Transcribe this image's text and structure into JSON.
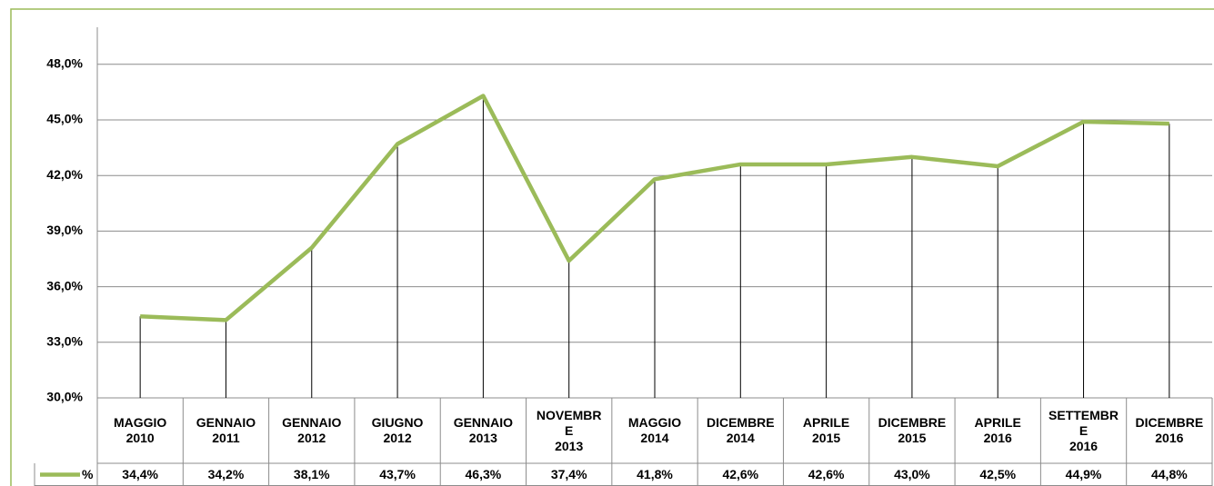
{
  "chart_data": {
    "type": "line",
    "categories": [
      "MAGGIO\n2010",
      "GENNAIO\n2011",
      "GENNAIO\n2012",
      "GIUGNO\n2012",
      "GENNAIO\n2013",
      "NOVEMBR\nE\n2013",
      "MAGGIO\n2014",
      "DICEMBRE\n2014",
      "APRILE\n2015",
      "DICEMBRE\n2015",
      "APRILE\n2016",
      "SETTEMBR\nE\n2016",
      "DICEMBRE\n2016"
    ],
    "series": [
      {
        "name": "%",
        "color": "#9bbb59",
        "values": [
          34.4,
          34.2,
          38.1,
          43.7,
          46.3,
          37.4,
          41.8,
          42.6,
          42.6,
          43.0,
          42.5,
          44.9,
          44.8
        ],
        "value_labels": [
          "34,4%",
          "34,2%",
          "38,1%",
          "43,7%",
          "46,3%",
          "37,4%",
          "41,8%",
          "42,6%",
          "42,6%",
          "43,0%",
          "42,5%",
          "44,9%",
          "44,8%"
        ]
      }
    ],
    "ylim": [
      30,
      50
    ],
    "yticks": [
      {
        "value": 30,
        "label": "30,0%"
      },
      {
        "value": 33,
        "label": "33,0%"
      },
      {
        "value": 36,
        "label": "36,0%"
      },
      {
        "value": 39,
        "label": "39,0%"
      },
      {
        "value": 42,
        "label": "42,0%"
      },
      {
        "value": 45,
        "label": "45,0%"
      },
      {
        "value": 48,
        "label": "48,0%"
      }
    ],
    "grid": true
  }
}
